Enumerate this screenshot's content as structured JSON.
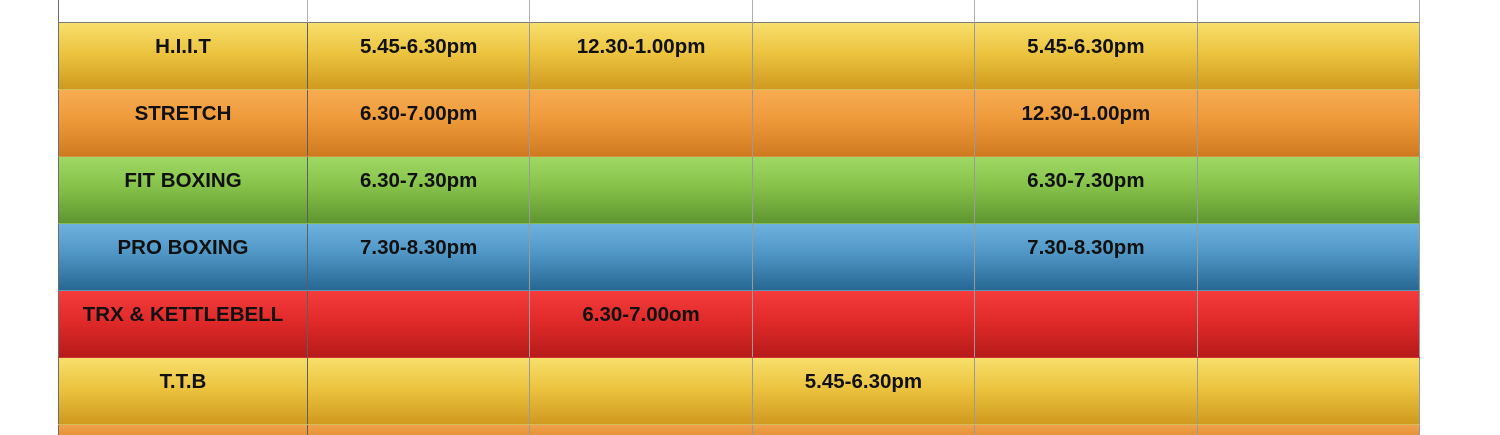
{
  "schedule": {
    "rows": [
      {
        "class": "H.I.I.T",
        "color": "#ecc440",
        "slots": [
          "5.45-6.30pm",
          "12.30-1.00pm",
          "",
          "5.45-6.30pm",
          ""
        ]
      },
      {
        "class": "STRETCH",
        "color": "#ee9a3a",
        "slots": [
          "6.30-7.00pm",
          "",
          "",
          "12.30-1.00pm",
          ""
        ]
      },
      {
        "class": "FIT BOXING",
        "color": "#86c24a",
        "slots": [
          "6.30-7.30pm",
          "",
          "",
          "6.30-7.30pm",
          ""
        ]
      },
      {
        "class": "PRO BOXING",
        "color": "#4f96c5",
        "slots": [
          "7.30-8.30pm",
          "",
          "",
          "7.30-8.30pm",
          ""
        ]
      },
      {
        "class": "TRX & KETTLEBELL",
        "color": "#e12a2a",
        "slots": [
          "",
          "6.30-7.00om",
          "",
          "",
          ""
        ]
      },
      {
        "class": "T.T.B",
        "color": "#ecc440",
        "slots": [
          "",
          "",
          "5.45-6.30pm",
          "",
          ""
        ]
      }
    ]
  }
}
